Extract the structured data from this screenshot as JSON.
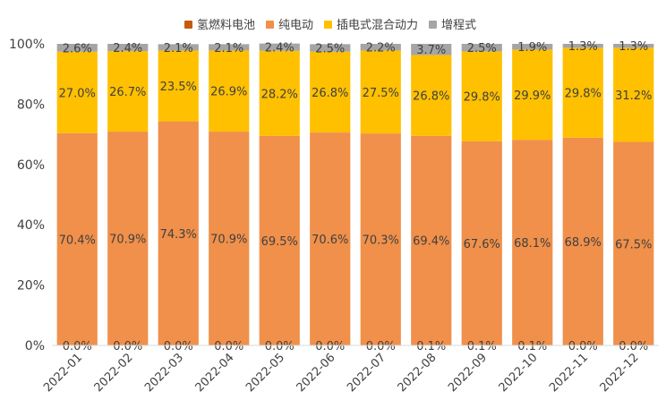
{
  "chart_data": {
    "type": "bar",
    "stacked": true,
    "percent": true,
    "categories": [
      "2022-01",
      "2022-02",
      "2022-03",
      "2022-04",
      "2022-05",
      "2022-06",
      "2022-07",
      "2022-08",
      "2022-09",
      "2022-10",
      "2022-11",
      "2022-12"
    ],
    "series": [
      {
        "name": "氢燃料电池",
        "color": "#c55a11",
        "values": [
          0.0,
          0.0,
          0.0,
          0.0,
          0.0,
          0.0,
          0.0,
          0.1,
          0.1,
          0.1,
          0.0,
          0.0
        ],
        "labels": [
          "0.0%",
          "0.0%",
          "0.0%",
          "0.0%",
          "0.0%",
          "0.0%",
          "0.0%",
          "0.1%",
          "0.1%",
          "0.1%",
          "0.0%",
          "0.0%"
        ]
      },
      {
        "name": "纯电动",
        "color": "#f0904a",
        "values": [
          70.4,
          70.9,
          74.3,
          70.9,
          69.5,
          70.6,
          70.3,
          69.4,
          67.6,
          68.1,
          68.9,
          67.5
        ],
        "labels": [
          "70.4%",
          "70.9%",
          "74.3%",
          "70.9%",
          "69.5%",
          "70.6%",
          "70.3%",
          "69.4%",
          "67.6%",
          "68.1%",
          "68.9%",
          "67.5%"
        ]
      },
      {
        "name": "插电式混合动力",
        "color": "#ffc000",
        "values": [
          27.0,
          26.7,
          23.5,
          26.9,
          28.2,
          26.8,
          27.5,
          26.8,
          29.8,
          29.9,
          29.8,
          31.2
        ],
        "labels": [
          "27.0%",
          "26.7%",
          "23.5%",
          "26.9%",
          "28.2%",
          "26.8%",
          "27.5%",
          "26.8%",
          "29.8%",
          "29.9%",
          "29.8%",
          "31.2%"
        ]
      },
      {
        "name": "增程式",
        "color": "#a5a5a5",
        "values": [
          2.6,
          2.4,
          2.1,
          2.1,
          2.4,
          2.5,
          2.2,
          3.7,
          2.5,
          1.9,
          1.3,
          1.3
        ],
        "labels": [
          "2.6%",
          "2.4%",
          "2.1%",
          "2.1%",
          "2.4%",
          "2.5%",
          "2.2%",
          "3.7%",
          "2.5%",
          "1.9%",
          "1.3%",
          "1.3%"
        ]
      }
    ],
    "ylim": [
      0,
      100
    ],
    "yticks": [
      "0%",
      "20%",
      "40%",
      "60%",
      "80%",
      "100%"
    ],
    "grid": false,
    "legend": "top-center"
  }
}
